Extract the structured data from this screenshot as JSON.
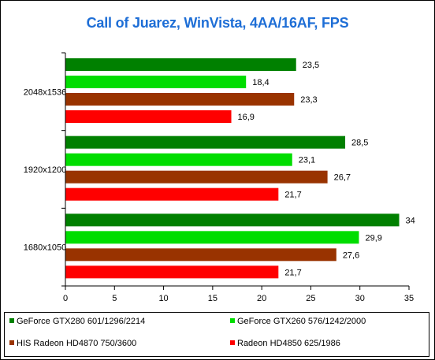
{
  "chart_data": {
    "type": "bar",
    "orientation": "horizontal",
    "title": "Call of Juarez, WinVista, 4AA/16AF, FPS",
    "categories": [
      "2048x1536",
      "1920x1200",
      "1680x1050"
    ],
    "xlim": [
      0,
      35
    ],
    "xticks": [
      "0",
      "5",
      "10",
      "15",
      "20",
      "25",
      "30",
      "35"
    ],
    "grid": false,
    "legend_position": "bottom",
    "series": [
      {
        "name": "GeForce GTX280 601/1296/2214",
        "color": "#008000",
        "values": [
          23.5,
          28.5,
          34
        ],
        "labels": [
          "23,5",
          "28,5",
          "34"
        ]
      },
      {
        "name": "GeForce GTX260 576/1242/2000",
        "color": "#00dd00",
        "values": [
          18.4,
          23.1,
          29.9
        ],
        "labels": [
          "18,4",
          "23,1",
          "29,9"
        ]
      },
      {
        "name": "HIS Radeon HD4870 750/3600",
        "color": "#993300",
        "values": [
          23.3,
          26.7,
          27.6
        ],
        "labels": [
          "23,3",
          "26,7",
          "27,6"
        ]
      },
      {
        "name": "Radeon HD4850 625/1986",
        "color": "#ff0000",
        "values": [
          16.9,
          21.7,
          21.7
        ],
        "labels": [
          "16,9",
          "21,7",
          "21,7"
        ]
      }
    ]
  }
}
